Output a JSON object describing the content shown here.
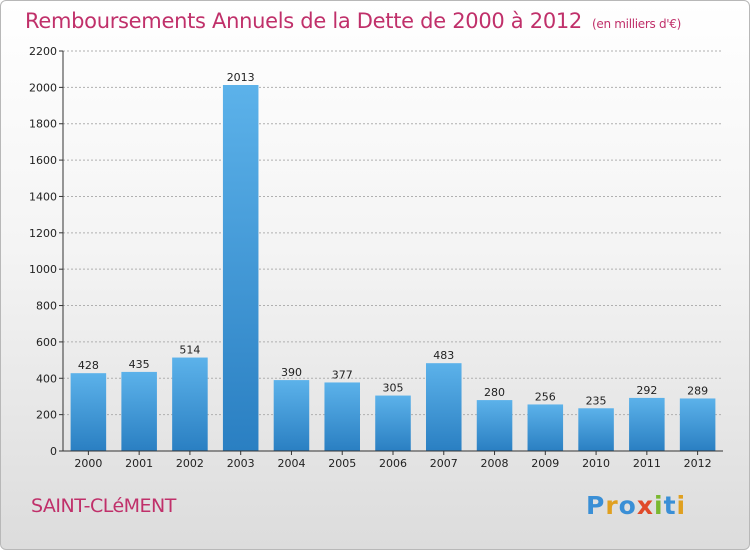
{
  "chart_data": {
    "type": "bar",
    "title": "Remboursements Annuels de la Dette de 2000 à 2012",
    "subtitle": "(en milliers d'€)",
    "categories": [
      "2000",
      "2001",
      "2002",
      "2003",
      "2004",
      "2005",
      "2006",
      "2007",
      "2008",
      "2009",
      "2010",
      "2011",
      "2012"
    ],
    "values": [
      428,
      435,
      514,
      2013,
      390,
      377,
      305,
      483,
      280,
      256,
      235,
      292,
      289
    ],
    "yticks": [
      0,
      200,
      400,
      600,
      800,
      1000,
      1200,
      1400,
      1600,
      1800,
      2000,
      2200
    ],
    "ylim": [
      0,
      2200
    ],
    "grid": true,
    "bar_color": "#3a96d8",
    "title_color": "#c0306a"
  },
  "footer": {
    "city": "SAINT-CLéMENT",
    "logo_letters": [
      {
        "char": "P",
        "color": "#3a8fd6"
      },
      {
        "char": "r",
        "color": "#e0a020"
      },
      {
        "char": "o",
        "color": "#3a8fd6"
      },
      {
        "char": "x",
        "color": "#e04a2a"
      },
      {
        "char": "i",
        "color": "#7ab830"
      },
      {
        "char": "t",
        "color": "#3a8fd6"
      },
      {
        "char": "i",
        "color": "#e0a020"
      }
    ]
  }
}
